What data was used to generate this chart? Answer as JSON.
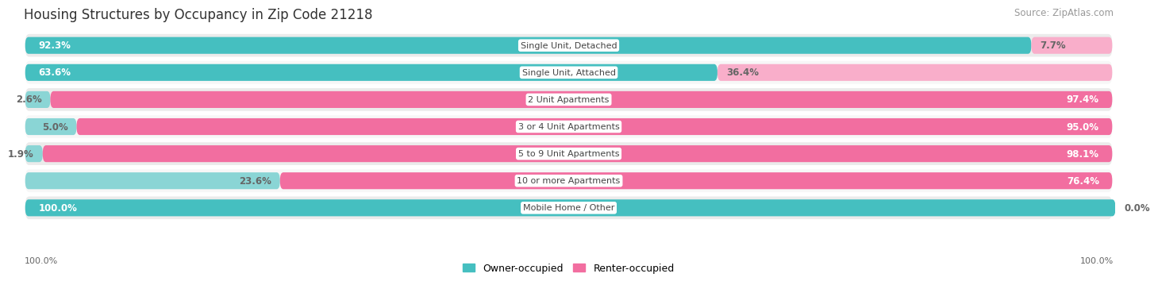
{
  "title": "Housing Structures by Occupancy in Zip Code 21218",
  "source": "Source: ZipAtlas.com",
  "categories": [
    "Single Unit, Detached",
    "Single Unit, Attached",
    "2 Unit Apartments",
    "3 or 4 Unit Apartments",
    "5 to 9 Unit Apartments",
    "10 or more Apartments",
    "Mobile Home / Other"
  ],
  "owner_pct": [
    92.3,
    63.6,
    2.6,
    5.0,
    1.9,
    23.6,
    100.0
  ],
  "renter_pct": [
    7.7,
    36.4,
    97.4,
    95.0,
    98.1,
    76.4,
    0.0
  ],
  "owner_color": "#45BFC0",
  "renter_color": "#F26EA0",
  "owner_color_light": "#8AD5D5",
  "renter_color_light": "#F9AECA",
  "row_bg_even": "#EBEBEB",
  "row_bg_odd": "#F7F7F7",
  "text_white": "#FFFFFF",
  "text_dark": "#666666",
  "label_fontsize": 8.5,
  "cat_fontsize": 8.0,
  "title_fontsize": 12,
  "source_fontsize": 8.5
}
